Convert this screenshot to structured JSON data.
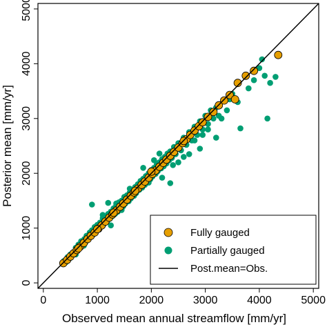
{
  "chart_data": {
    "type": "scatter",
    "xlabel": "Observed mean annual streamflow [mm/yr]",
    "ylabel": "Posterior mean [mm/yr]",
    "xlim": [
      -100,
      5100
    ],
    "ylim": [
      -100,
      5100
    ],
    "xticks": [
      "0",
      "1000",
      "2000",
      "3000",
      "4000",
      "5000"
    ],
    "yticks": [
      "0",
      "1000",
      "2000",
      "3000",
      "4000",
      "5000"
    ],
    "grid": false,
    "legend_position": "bottom-right",
    "colors": {
      "fully": "#E69F00",
      "partially": "#009E73",
      "line": "#000000"
    },
    "legend": {
      "fully": "Fully gauged",
      "partially": "Partially gauged",
      "line": "Post.mean=Obs."
    },
    "series": [
      {
        "name": "Partially gauged",
        "points": [
          [
            380,
            400
          ],
          [
            420,
            380
          ],
          [
            450,
            470
          ],
          [
            480,
            440
          ],
          [
            500,
            520
          ],
          [
            520,
            480
          ],
          [
            560,
            560
          ],
          [
            580,
            530
          ],
          [
            600,
            640
          ],
          [
            620,
            580
          ],
          [
            650,
            700
          ],
          [
            680,
            640
          ],
          [
            700,
            760
          ],
          [
            720,
            690
          ],
          [
            760,
            800
          ],
          [
            780,
            740
          ],
          [
            800,
            860
          ],
          [
            830,
            800
          ],
          [
            860,
            920
          ],
          [
            880,
            840
          ],
          [
            900,
            960
          ],
          [
            920,
            880
          ],
          [
            950,
            1020
          ],
          [
            980,
            940
          ],
          [
            1000,
            1060
          ],
          [
            1020,
            980
          ],
          [
            1050,
            1100
          ],
          [
            1080,
            1030
          ],
          [
            1100,
            1180
          ],
          [
            1120,
            1070
          ],
          [
            1150,
            1210
          ],
          [
            1180,
            1120
          ],
          [
            1200,
            1260
          ],
          [
            1230,
            1170
          ],
          [
            1250,
            1300
          ],
          [
            1280,
            1220
          ],
          [
            1300,
            1360
          ],
          [
            1330,
            1260
          ],
          [
            1350,
            1420
          ],
          [
            1380,
            1300
          ],
          [
            1400,
            1470
          ],
          [
            1420,
            1350
          ],
          [
            1450,
            1500
          ],
          [
            1480,
            1400
          ],
          [
            1500,
            1560
          ],
          [
            1520,
            1450
          ],
          [
            1550,
            1600
          ],
          [
            1580,
            1490
          ],
          [
            1600,
            1650
          ],
          [
            1620,
            1540
          ],
          [
            1650,
            1700
          ],
          [
            1680,
            1590
          ],
          [
            1700,
            1750
          ],
          [
            1720,
            1640
          ],
          [
            1750,
            1800
          ],
          [
            1780,
            1700
          ],
          [
            1800,
            1860
          ],
          [
            1830,
            1740
          ],
          [
            1850,
            1900
          ],
          [
            1880,
            1790
          ],
          [
            1900,
            1950
          ],
          [
            1920,
            1840
          ],
          [
            1950,
            2000
          ],
          [
            1980,
            1890
          ],
          [
            2000,
            2060
          ],
          [
            2020,
            1940
          ],
          [
            2050,
            2100
          ],
          [
            2080,
            1990
          ],
          [
            2100,
            2160
          ],
          [
            2120,
            2040
          ],
          [
            2150,
            2200
          ],
          [
            2180,
            2090
          ],
          [
            2200,
            2260
          ],
          [
            2230,
            2130
          ],
          [
            2250,
            2300
          ],
          [
            2280,
            2180
          ],
          [
            2300,
            2360
          ],
          [
            2330,
            2240
          ],
          [
            2350,
            2400
          ],
          [
            2380,
            2280
          ],
          [
            2420,
            2480
          ],
          [
            2450,
            2350
          ],
          [
            2500,
            2550
          ],
          [
            2550,
            2420
          ],
          [
            2600,
            2650
          ],
          [
            2650,
            2520
          ],
          [
            2700,
            2750
          ],
          [
            2750,
            2600
          ],
          [
            2800,
            2850
          ],
          [
            2850,
            2700
          ],
          [
            2900,
            2950
          ],
          [
            2950,
            2800
          ],
          [
            3000,
            3050
          ],
          [
            3050,
            2900
          ],
          [
            3100,
            3150
          ],
          [
            3150,
            3000
          ],
          [
            3200,
            3200
          ],
          [
            3250,
            3050
          ],
          [
            900,
            1430
          ],
          [
            1200,
            1460
          ],
          [
            1350,
            1450
          ],
          [
            1500,
            1570
          ],
          [
            1600,
            1720
          ],
          [
            1850,
            2100
          ],
          [
            2050,
            2240
          ],
          [
            2150,
            2360
          ],
          [
            2400,
            2150
          ],
          [
            2600,
            2300
          ],
          [
            2800,
            2600
          ],
          [
            2900,
            2450
          ],
          [
            3050,
            2800
          ],
          [
            3200,
            2650
          ],
          [
            3300,
            3000
          ],
          [
            3500,
            3450
          ],
          [
            3600,
            3300
          ],
          [
            3650,
            2820
          ],
          [
            3800,
            3550
          ],
          [
            3900,
            3700
          ],
          [
            4000,
            3920
          ],
          [
            4050,
            4080
          ],
          [
            4100,
            3780
          ],
          [
            4150,
            3000
          ],
          [
            4200,
            3650
          ],
          [
            4300,
            3760
          ],
          [
            2350,
            1820
          ],
          [
            2200,
            1920
          ],
          [
            1700,
            1680
          ],
          [
            1100,
            1240
          ],
          [
            3400,
            3150
          ],
          [
            3450,
            3350
          ],
          [
            2950,
            2700
          ],
          [
            2700,
            2350
          ],
          [
            1250,
            1050
          ],
          [
            1450,
            1330
          ],
          [
            1950,
            1830
          ],
          [
            2500,
            2200
          ],
          [
            600,
            520
          ],
          [
            750,
            680
          ]
        ]
      },
      {
        "name": "Fully gauged",
        "points": [
          [
            370,
            360
          ],
          [
            440,
            420
          ],
          [
            500,
            480
          ],
          [
            560,
            540
          ],
          [
            620,
            600
          ],
          [
            680,
            660
          ],
          [
            750,
            730
          ],
          [
            820,
            800
          ],
          [
            880,
            860
          ],
          [
            950,
            920
          ],
          [
            1020,
            990
          ],
          [
            1080,
            1050
          ],
          [
            1150,
            1120
          ],
          [
            1220,
            1190
          ],
          [
            1280,
            1250
          ],
          [
            1350,
            1320
          ],
          [
            1420,
            1390
          ],
          [
            1480,
            1450
          ],
          [
            1550,
            1520
          ],
          [
            1620,
            1590
          ],
          [
            1680,
            1650
          ],
          [
            1750,
            1720
          ],
          [
            1820,
            1790
          ],
          [
            1880,
            1850
          ],
          [
            1950,
            1920
          ],
          [
            2020,
            1990
          ],
          [
            2080,
            2050
          ],
          [
            2150,
            2120
          ],
          [
            2220,
            2190
          ],
          [
            2280,
            2250
          ],
          [
            2350,
            2320
          ],
          [
            2420,
            2390
          ],
          [
            2500,
            2470
          ],
          [
            2580,
            2550
          ],
          [
            2650,
            2620
          ],
          [
            2720,
            2700
          ],
          [
            2800,
            2780
          ],
          [
            2880,
            2860
          ],
          [
            2950,
            2930
          ],
          [
            3050,
            3030
          ],
          [
            3150,
            3120
          ],
          [
            3250,
            3240
          ],
          [
            3350,
            3330
          ],
          [
            3450,
            3430
          ],
          [
            3550,
            3350
          ],
          [
            3600,
            3650
          ],
          [
            3750,
            3780
          ],
          [
            3900,
            3870
          ],
          [
            4350,
            4160
          ],
          [
            2000,
            2030
          ],
          [
            1700,
            1680
          ],
          [
            1300,
            1280
          ],
          [
            1000,
            980
          ],
          [
            650,
            630
          ],
          [
            2600,
            2590
          ]
        ]
      }
    ]
  }
}
